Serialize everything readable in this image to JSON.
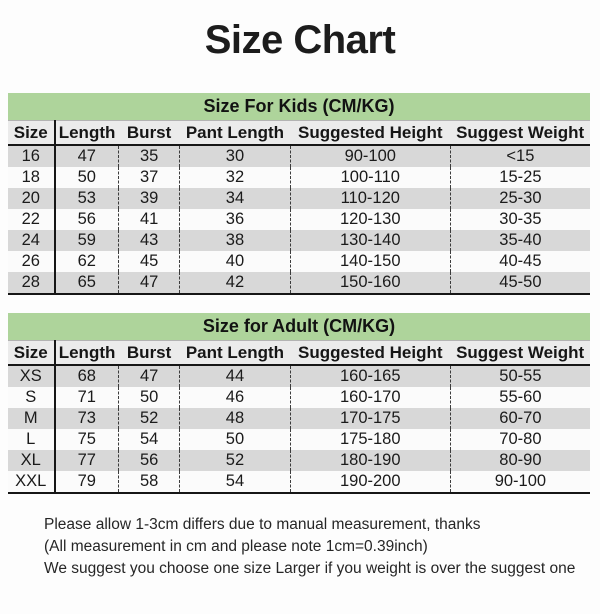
{
  "page_title": "Size Chart",
  "colors": {
    "section_header_bg": "#aed49b",
    "column_header_bg": "#ebebeb",
    "row_alt_bg": "#d8d8d8",
    "row_bg": "#fbfbfb",
    "border": "#161616",
    "text": "#1a1a1a"
  },
  "chart_data": [
    {
      "type": "table",
      "title": "Size For Kids (CM/KG)",
      "columns": [
        "Size",
        "Length",
        "Burst",
        "Pant Length",
        "Suggested Height",
        "Suggest Weight"
      ],
      "rows": [
        [
          "16",
          "47",
          "35",
          "30",
          "90-100",
          "<15"
        ],
        [
          "18",
          "50",
          "37",
          "32",
          "100-110",
          "15-25"
        ],
        [
          "20",
          "53",
          "39",
          "34",
          "110-120",
          "25-30"
        ],
        [
          "22",
          "56",
          "41",
          "36",
          "120-130",
          "30-35"
        ],
        [
          "24",
          "59",
          "43",
          "38",
          "130-140",
          "35-40"
        ],
        [
          "26",
          "62",
          "45",
          "40",
          "140-150",
          "40-45"
        ],
        [
          "28",
          "65",
          "47",
          "42",
          "150-160",
          "45-50"
        ]
      ]
    },
    {
      "type": "table",
      "title": "Size for Adult (CM/KG)",
      "columns": [
        "Size",
        "Length",
        "Burst",
        "Pant Length",
        "Suggested Height",
        "Suggest Weight"
      ],
      "rows": [
        [
          "XS",
          "68",
          "47",
          "44",
          "160-165",
          "50-55"
        ],
        [
          "S",
          "71",
          "50",
          "46",
          "160-170",
          "55-60"
        ],
        [
          "M",
          "73",
          "52",
          "48",
          "170-175",
          "60-70"
        ],
        [
          "L",
          "75",
          "54",
          "50",
          "175-180",
          "70-80"
        ],
        [
          "XL",
          "77",
          "56",
          "52",
          "180-190",
          "80-90"
        ],
        [
          "XXL",
          "79",
          "58",
          "54",
          "190-200",
          "90-100"
        ]
      ]
    }
  ],
  "notes": [
    "Please allow 1-3cm differs due to manual measurement, thanks",
    "(All measurement in cm and please note 1cm=0.39inch)",
    "We suggest you choose one size Larger if you weight is over the suggest one"
  ]
}
